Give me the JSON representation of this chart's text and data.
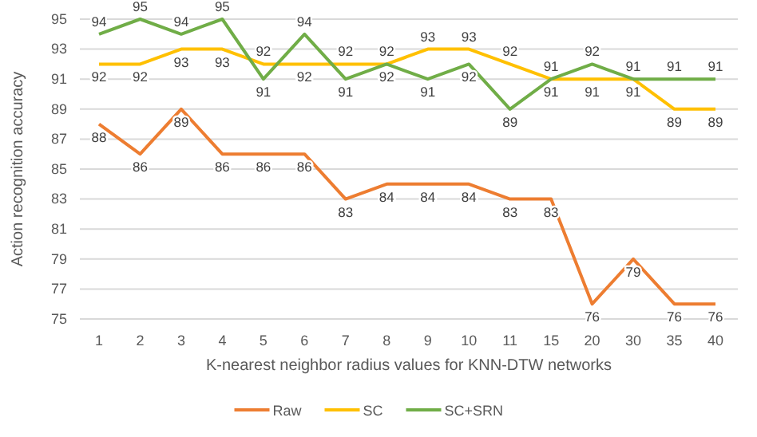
{
  "chart_data": {
    "type": "line",
    "xlabel": "K-nearest neighbor radius values for KNN-DTW networks",
    "ylabel": "Action recognition accuracy",
    "categories": [
      "1",
      "2",
      "3",
      "4",
      "5",
      "6",
      "7",
      "8",
      "9",
      "10",
      "11",
      "15",
      "20",
      "30",
      "35",
      "40"
    ],
    "series": [
      {
        "name": "Raw",
        "color": "#ed7d31",
        "values": [
          88,
          86,
          89,
          86,
          86,
          86,
          83,
          84,
          84,
          84,
          83,
          83,
          76,
          79,
          76,
          76
        ]
      },
      {
        "name": "SC",
        "color": "#ffc000",
        "values": [
          92,
          92,
          93,
          93,
          92,
          92,
          92,
          92,
          93,
          93,
          92,
          91,
          91,
          91,
          89,
          89
        ]
      },
      {
        "name": "SC+SRN",
        "color": "#70ad47",
        "values": [
          94,
          95,
          94,
          95,
          91,
          94,
          91,
          92,
          91,
          92,
          89,
          91,
          92,
          91,
          91,
          91
        ]
      }
    ],
    "ylim": [
      75,
      95
    ],
    "yticks": [
      75,
      77,
      79,
      81,
      83,
      85,
      87,
      89,
      91,
      93,
      95
    ],
    "grid": "y",
    "legend": "bottom",
    "data_labels": true,
    "marker": "none",
    "line_style": "solid"
  }
}
